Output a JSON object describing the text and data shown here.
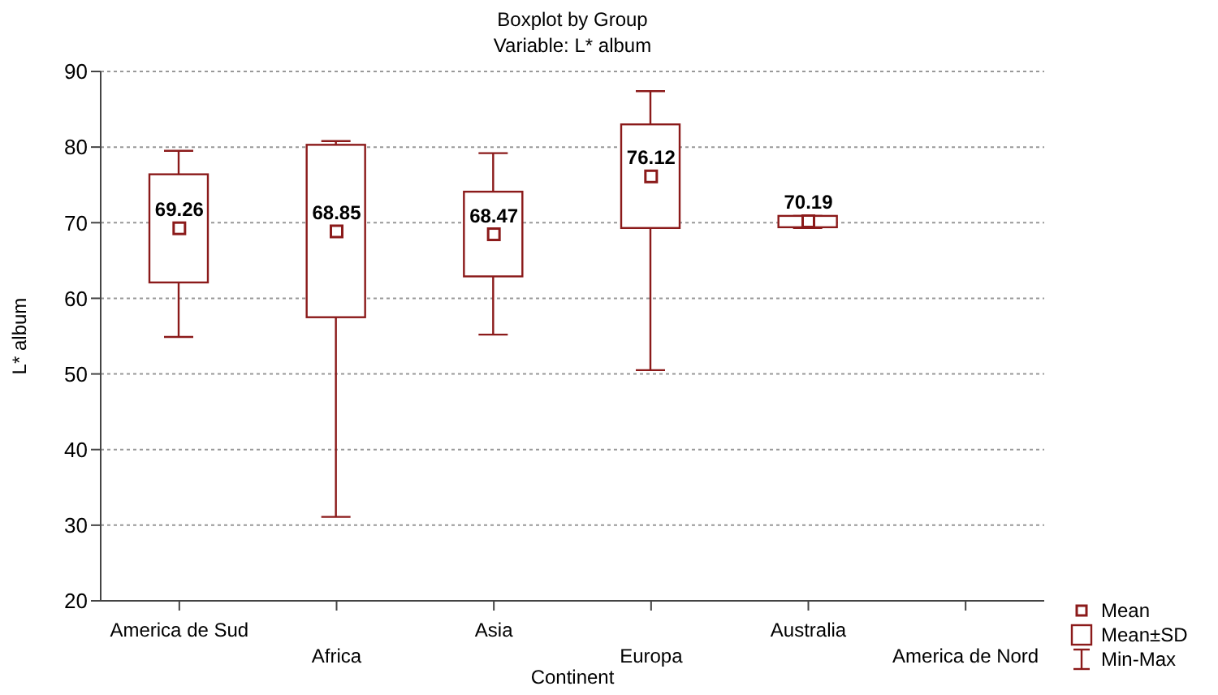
{
  "chart_data": {
    "type": "box",
    "title": "Boxplot by Group",
    "subtitle": "Variable: L* album",
    "xlabel": "Continent",
    "ylabel": "L* album",
    "categories": [
      "America de Sud",
      "Africa",
      "Asia",
      "Europa",
      "Australia",
      "America de Nord"
    ],
    "series": [
      {
        "color": "#8b1a1a",
        "boxes": [
          {
            "low": 54.9,
            "q1": 62.1,
            "q3": 76.4,
            "high": 79.5,
            "mean": 69.26
          },
          {
            "low": 31.1,
            "q1": 57.5,
            "q3": 80.3,
            "high": 80.8,
            "mean": 68.85
          },
          {
            "low": 55.2,
            "q1": 62.9,
            "q3": 74.1,
            "high": 79.2,
            "mean": 68.47
          },
          {
            "low": 50.5,
            "q1": 69.3,
            "q3": 83.0,
            "high": 87.4,
            "mean": 76.12
          },
          {
            "low": 69.3,
            "q1": 69.4,
            "q3": 70.9,
            "high": 70.9,
            "mean": 70.19
          },
          null
        ]
      }
    ],
    "ylim": [
      20,
      90
    ],
    "yticks": [
      20,
      30,
      40,
      50,
      60,
      70,
      80,
      90
    ],
    "grid": "y",
    "marker": "square",
    "value_labels": [
      "69.26",
      "68.85",
      "68.47",
      "76.12",
      "70.19",
      null
    ],
    "annotations": [
      "Mean",
      "Mean±SD",
      "Min-Max"
    ]
  }
}
